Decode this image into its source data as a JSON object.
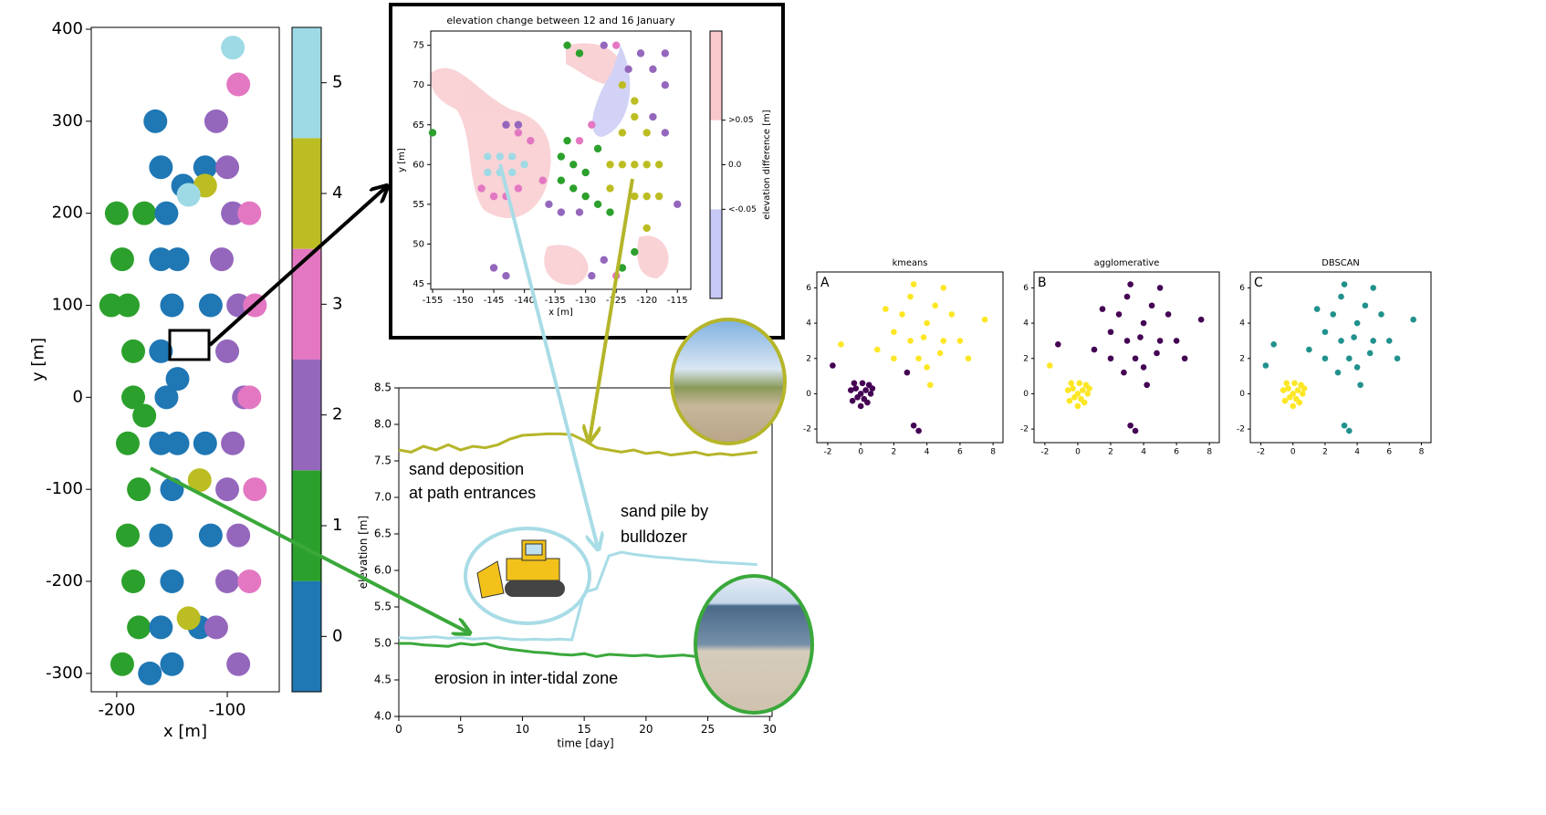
{
  "chart_data": [
    {
      "type": "scatter",
      "xlabel": "x [m]",
      "ylabel": "y [m]",
      "xlim": [
        -223,
        -53
      ],
      "ylim": [
        -320,
        402
      ],
      "xticks": [
        -200,
        -100
      ],
      "yticks": [
        -300,
        -200,
        -100,
        0,
        100,
        200,
        300,
        400
      ],
      "x": [
        -195,
        -190,
        -185,
        -185,
        -190,
        -180,
        -190,
        -185,
        -180,
        -195,
        -175,
        -200,
        -205,
        -175,
        -165,
        -160,
        -155,
        -160,
        -150,
        -160,
        -155,
        -160,
        -150,
        -160,
        -150,
        -160,
        -150,
        -140,
        -145,
        -170,
        -145,
        -145,
        -120,
        -115,
        -120,
        -115,
        -125,
        -110,
        -100,
        -95,
        -105,
        -90,
        -100,
        -85,
        -95,
        -100,
        -90,
        -100,
        -110,
        -90,
        -80,
        -75,
        -80,
        -75,
        -80,
        -90,
        -120,
        -125,
        -135,
        -135,
        -95
      ],
      "y": [
        150,
        100,
        50,
        0,
        -50,
        -100,
        -150,
        -200,
        -250,
        -290,
        200,
        200,
        100,
        -20,
        300,
        250,
        200,
        150,
        100,
        50,
        0,
        -50,
        -100,
        -150,
        -200,
        -250,
        -290,
        230,
        -50,
        -300,
        150,
        20,
        250,
        100,
        -50,
        -150,
        -250,
        300,
        250,
        200,
        150,
        100,
        50,
        0,
        -50,
        -100,
        -150,
        -200,
        -250,
        -290,
        200,
        100,
        0,
        -100,
        -200,
        340,
        230,
        -90,
        -240,
        220,
        380
      ],
      "c": [
        1,
        1,
        1,
        1,
        1,
        1,
        1,
        1,
        1,
        1,
        1,
        1,
        1,
        1,
        0,
        0,
        0,
        0,
        0,
        0,
        0,
        0,
        0,
        0,
        0,
        0,
        0,
        0,
        0,
        0,
        0,
        0,
        0,
        0,
        0,
        0,
        0,
        2,
        2,
        2,
        2,
        2,
        2,
        2,
        2,
        2,
        2,
        2,
        2,
        2,
        3,
        3,
        3,
        3,
        3,
        3,
        4,
        4,
        4,
        5,
        5
      ],
      "colors": [
        "#1f77b4",
        "#2ca02c",
        "#9467bd",
        "#e377c2",
        "#bcbd22",
        "#9edae5"
      ],
      "colorbar_lim": [
        -0.5,
        5.5
      ],
      "colorbar_ticks": [
        0,
        1,
        2,
        3,
        4,
        5
      ]
    },
    {
      "type": "scatter",
      "title": "elevation change between 12 and 16 January",
      "xlabel": "x [m]",
      "ylabel": "y [m]",
      "xlim": [
        -155.3,
        -112.8
      ],
      "ylim": [
        44.3,
        76.8
      ],
      "xticks": [
        -155,
        -150,
        -145,
        -140,
        -135,
        -130,
        -125,
        -120,
        -115
      ],
      "yticks": [
        45,
        50,
        55,
        60,
        65,
        70,
        75
      ],
      "x": [
        -146,
        -144,
        -142,
        -146,
        -144,
        -142,
        -140,
        -147,
        -145,
        -143,
        -141,
        -139,
        -141,
        -137,
        -129,
        -131,
        -125,
        -125,
        -143,
        -141,
        -136,
        -134,
        -131,
        -145,
        -143,
        -127,
        -129,
        -121,
        -119,
        -117,
        -117,
        -117,
        -119,
        -115,
        -123,
        -127,
        -155,
        -133,
        -131,
        -134,
        -132,
        -130,
        -134,
        -132,
        -130,
        -128,
        -126,
        -133,
        -128,
        -122,
        -124,
        -126,
        -124,
        -122,
        -120,
        -118,
        -124,
        -122,
        -122,
        -120,
        -120,
        -118,
        -126,
        -124,
        -122,
        -120
      ],
      "y": [
        61,
        61,
        61,
        59,
        59,
        59,
        60,
        57,
        56,
        56,
        57,
        63,
        64,
        58,
        65,
        63,
        75,
        46,
        65,
        65,
        55,
        54,
        54,
        47,
        46,
        48,
        46,
        74,
        72,
        74,
        70,
        64,
        66,
        55,
        72,
        75,
        64,
        75,
        74,
        61,
        60,
        59,
        58,
        57,
        56,
        55,
        54,
        63,
        62,
        49,
        47,
        60,
        60,
        60,
        60,
        60,
        64,
        66,
        68,
        64,
        56,
        56,
        57,
        70,
        56,
        52
      ],
      "c": [
        5,
        5,
        5,
        5,
        5,
        5,
        5,
        3,
        3,
        3,
        3,
        3,
        3,
        3,
        3,
        3,
        3,
        3,
        2,
        2,
        2,
        2,
        2,
        2,
        2,
        2,
        2,
        2,
        2,
        2,
        2,
        2,
        2,
        2,
        2,
        2,
        1,
        1,
        1,
        1,
        1,
        1,
        1,
        1,
        1,
        1,
        1,
        1,
        1,
        1,
        1,
        4,
        4,
        4,
        4,
        4,
        4,
        4,
        4,
        4,
        4,
        4,
        4,
        4,
        4,
        4
      ],
      "colors": [
        "#1f77b4",
        "#2ca02c",
        "#9467bd",
        "#e377c2",
        "#bcbd22",
        "#9edae5"
      ],
      "colorbar_label": "elevation difference [m]",
      "colorbar_lim": [
        -0.15,
        0.15
      ],
      "colorbar_ticks": [
        {
          "value": 0.05,
          "label": ">0.05"
        },
        {
          "value": 0,
          "label": "0.0"
        },
        {
          "value": -0.05,
          "label": "<-0.05"
        }
      ],
      "colorbar_colors": [
        "#c8c8f5",
        "#ffffff",
        "#f8c8cc"
      ]
    },
    {
      "type": "line",
      "xlabel": "time [day]",
      "ylabel": "elevation [m]",
      "xlim": [
        0,
        30.2
      ],
      "ylim": [
        4.0,
        8.5
      ],
      "xticks": [
        0,
        5,
        10,
        15,
        20,
        25,
        30
      ],
      "yticks": [
        {
          "value": 4,
          "label": "4.0"
        },
        4.5,
        {
          "value": 5,
          "label": "5.0"
        },
        5.5,
        {
          "value": 6,
          "label": "6.0"
        },
        6.5,
        {
          "value": 7,
          "label": "7.0"
        },
        7.5,
        {
          "value": 8,
          "label": "8.0"
        },
        8.5
      ],
      "x": [
        0,
        1,
        2,
        3,
        4,
        5,
        6,
        7,
        8,
        9,
        10,
        11,
        12,
        13,
        14,
        15,
        16,
        17,
        18,
        19,
        20,
        21,
        22,
        23,
        24,
        25,
        26,
        27,
        28,
        29
      ],
      "series": [
        {
          "color": "#b5b52a",
          "values": [
            7.65,
            7.62,
            7.7,
            7.65,
            7.72,
            7.65,
            7.7,
            7.68,
            7.72,
            7.8,
            7.85,
            7.86,
            7.87,
            7.87,
            7.86,
            7.78,
            7.68,
            7.65,
            7.62,
            7.65,
            7.6,
            7.62,
            7.58,
            7.6,
            7.62,
            7.58,
            7.6,
            7.58,
            7.6,
            7.62
          ]
        },
        {
          "color": "#a8dce6",
          "values": [
            5.08,
            5.07,
            5.08,
            5.09,
            5.07,
            5.08,
            5.06,
            5.07,
            5.08,
            5.06,
            5.05,
            5.06,
            5.05,
            5.06,
            5.05,
            5.7,
            5.75,
            6.2,
            6.25,
            6.22,
            6.2,
            6.18,
            6.17,
            6.15,
            6.14,
            6.12,
            6.11,
            6.1,
            6.09,
            6.08
          ]
        },
        {
          "color": "#3aa83a",
          "values": [
            5.0,
            5.0,
            4.98,
            4.97,
            4.96,
            5.0,
            4.98,
            5.0,
            4.95,
            4.92,
            4.9,
            4.88,
            4.87,
            4.85,
            4.84,
            4.86,
            4.82,
            4.85,
            4.84,
            4.83,
            4.84,
            4.82,
            4.83,
            4.84,
            4.82,
            4.83,
            4.84,
            4.83,
            4.84,
            4.83
          ]
        }
      ],
      "annotations": [
        "sand deposition",
        "at path entrances",
        "sand pile by",
        "bulldozer",
        "erosion in inter-tidal zone"
      ]
    },
    {
      "type": "scatter",
      "title": "kmeans",
      "panel_label": "A",
      "xlim": [
        -2.66,
        8.6
      ],
      "ylim": [
        -2.77,
        6.9
      ],
      "xticks": [
        -2,
        0,
        2,
        4,
        6,
        8
      ],
      "yticks": [
        -2,
        0,
        2,
        4,
        6
      ],
      "x": [
        0,
        0.3,
        -0.3,
        0.2,
        -0.2,
        0.5,
        -0.5,
        0.4,
        0.1,
        -0.6,
        0.6,
        0,
        -0.4,
        0.7,
        3,
        4,
        2.5,
        3.5,
        5,
        4.5,
        2,
        6,
        3,
        4,
        5.5,
        2,
        3.8,
        4.8,
        1.5,
        6.5,
        3.2,
        7.5,
        5,
        2.8,
        1,
        4.2,
        -1.7,
        3.2,
        3.5,
        -1.2
      ],
      "y": [
        0,
        0.2,
        0.3,
        -0.3,
        -0.2,
        0.5,
        -0.4,
        -0.5,
        0.6,
        0.2,
        0,
        -0.7,
        0.6,
        0.3,
        3,
        4,
        4.5,
        2,
        3,
        5,
        3.5,
        3,
        5.5,
        1.5,
        4.5,
        2,
        3.2,
        2.3,
        4.8,
        2,
        6.2,
        4.2,
        6,
        1.2,
        2.5,
        0.5,
        1.6,
        -1.8,
        -2.1,
        2.8
      ],
      "c": [
        0,
        0,
        0,
        0,
        0,
        0,
        0,
        0,
        0,
        0,
        0,
        0,
        0,
        0,
        1,
        1,
        1,
        1,
        1,
        1,
        1,
        1,
        1,
        1,
        1,
        1,
        1,
        1,
        1,
        1,
        1,
        1,
        1,
        0,
        1,
        1,
        0,
        0,
        0,
        1
      ],
      "colors": [
        "#440154",
        "#fde725"
      ]
    },
    {
      "type": "scatter",
      "title": "agglomerative",
      "panel_label": "B",
      "xlim": [
        -2.66,
        8.6
      ],
      "ylim": [
        -2.77,
        6.9
      ],
      "xticks": [
        -2,
        0,
        2,
        4,
        6,
        8
      ],
      "yticks": [
        -2,
        0,
        2,
        4,
        6
      ],
      "x": [
        0,
        0.3,
        -0.3,
        0.2,
        -0.2,
        0.5,
        -0.5,
        0.4,
        0.1,
        -0.6,
        0.6,
        0,
        -0.4,
        0.7,
        3,
        4,
        2.5,
        3.5,
        5,
        4.5,
        2,
        6,
        3,
        4,
        5.5,
        2,
        3.8,
        4.8,
        1.5,
        6.5,
        3.2,
        7.5,
        5,
        2.8,
        1,
        4.2,
        -1.7,
        3.2,
        3.5,
        -1.2
      ],
      "y": [
        0,
        0.2,
        0.3,
        -0.3,
        -0.2,
        0.5,
        -0.4,
        -0.5,
        0.6,
        0.2,
        0,
        -0.7,
        0.6,
        0.3,
        3,
        4,
        4.5,
        2,
        3,
        5,
        3.5,
        3,
        5.5,
        1.5,
        4.5,
        2,
        3.2,
        2.3,
        4.8,
        2,
        6.2,
        4.2,
        6,
        1.2,
        2.5,
        0.5,
        1.6,
        -1.8,
        -2.1,
        2.8
      ],
      "c": [
        1,
        1,
        1,
        1,
        1,
        1,
        1,
        1,
        1,
        1,
        1,
        1,
        1,
        1,
        0,
        0,
        0,
        0,
        0,
        0,
        0,
        0,
        0,
        0,
        0,
        0,
        0,
        0,
        0,
        0,
        0,
        0,
        0,
        0,
        0,
        0,
        1,
        0,
        0,
        0
      ],
      "colors": [
        "#440154",
        "#fde725"
      ]
    },
    {
      "type": "scatter",
      "title": "DBSCAN",
      "panel_label": "C",
      "xlim": [
        -2.66,
        8.6
      ],
      "ylim": [
        -2.77,
        6.9
      ],
      "xticks": [
        -2,
        0,
        2,
        4,
        6,
        8
      ],
      "yticks": [
        -2,
        0,
        2,
        4,
        6
      ],
      "x": [
        0,
        0.3,
        -0.3,
        0.2,
        -0.2,
        0.5,
        -0.5,
        0.4,
        0.1,
        -0.6,
        0.6,
        0,
        -0.4,
        0.7,
        3,
        4,
        2.5,
        3.5,
        5,
        4.5,
        2,
        6,
        3,
        4,
        5.5,
        2,
        3.8,
        4.8,
        1.5,
        6.5,
        3.2,
        7.5,
        5,
        2.8,
        1,
        4.2,
        -1.7,
        3.2,
        3.5,
        -1.2
      ],
      "y": [
        0,
        0.2,
        0.3,
        -0.3,
        -0.2,
        0.5,
        -0.4,
        -0.5,
        0.6,
        0.2,
        0,
        -0.7,
        0.6,
        0.3,
        3,
        4,
        4.5,
        2,
        3,
        5,
        3.5,
        3,
        5.5,
        1.5,
        4.5,
        2,
        3.2,
        2.3,
        4.8,
        2,
        6.2,
        4.2,
        6,
        1.2,
        2.5,
        0.5,
        1.6,
        -1.8,
        -2.1,
        2.8
      ],
      "c": [
        1,
        1,
        1,
        1,
        1,
        1,
        1,
        1,
        1,
        1,
        1,
        1,
        1,
        1,
        0,
        0,
        0,
        0,
        0,
        0,
        0,
        0,
        0,
        0,
        0,
        0,
        0,
        0,
        0,
        0,
        0,
        0,
        0,
        0,
        0,
        0,
        0,
        0,
        0,
        0
      ],
      "colors": [
        "#21918c",
        "#fde725"
      ]
    }
  ]
}
